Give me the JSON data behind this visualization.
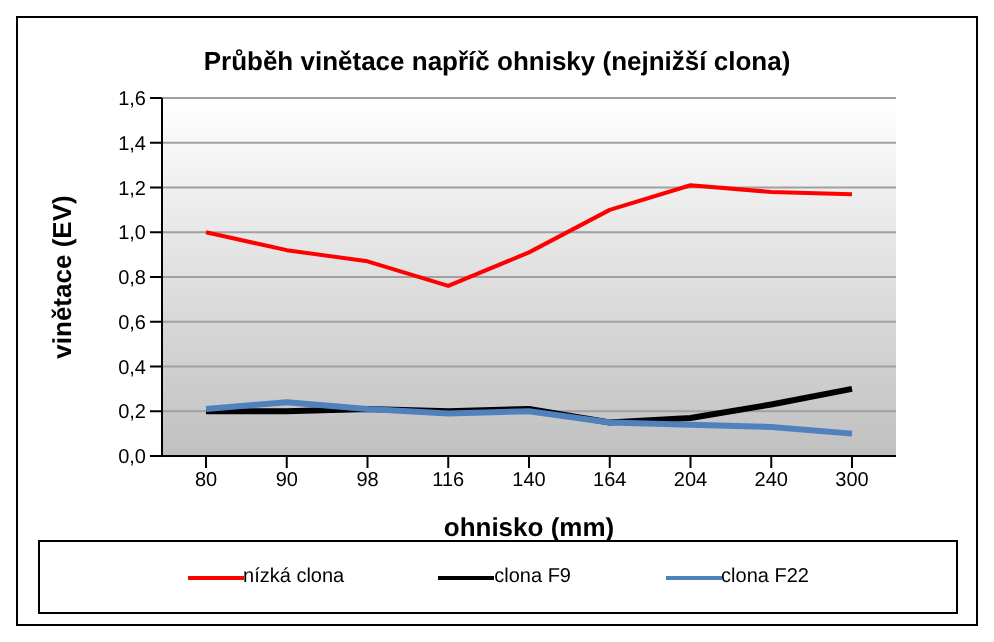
{
  "chart_data": {
    "type": "line",
    "title": "Průběh vinětace napříč ohnisky (nejnižší clona)",
    "xlabel": "ohnisko (mm)",
    "ylabel": "vinětace (EV)",
    "categories": [
      "80",
      "90",
      "98",
      "116",
      "140",
      "164",
      "204",
      "240",
      "300"
    ],
    "series": [
      {
        "name": "nízká clona",
        "color": "#ff0000",
        "values": [
          1.0,
          0.92,
          0.87,
          0.76,
          0.91,
          1.1,
          1.21,
          1.18,
          1.17
        ]
      },
      {
        "name": "clona F9",
        "color": "#000000",
        "values": [
          0.2,
          0.2,
          0.21,
          0.2,
          0.21,
          0.15,
          0.17,
          0.23,
          0.3
        ]
      },
      {
        "name": "clona F22",
        "color": "#4f81bd",
        "values": [
          0.21,
          0.24,
          0.21,
          0.19,
          0.2,
          0.15,
          0.14,
          0.13,
          0.1
        ]
      }
    ],
    "ylim": [
      0,
      1.6
    ],
    "yticks": [
      {
        "value": 0,
        "label": "0,0"
      },
      {
        "value": 0.2,
        "label": "0,2"
      },
      {
        "value": 0.4,
        "label": "0,4"
      },
      {
        "value": 0.6,
        "label": "0,6"
      },
      {
        "value": 0.8,
        "label": "0,8"
      },
      {
        "value": 1.0,
        "label": "1,0"
      },
      {
        "value": 1.2,
        "label": "1,2"
      },
      {
        "value": 1.4,
        "label": "1,4"
      },
      {
        "value": 1.6,
        "label": "1,6"
      }
    ],
    "grid": "y",
    "legend": "bottom",
    "marker": "none",
    "line_style": "solid"
  }
}
